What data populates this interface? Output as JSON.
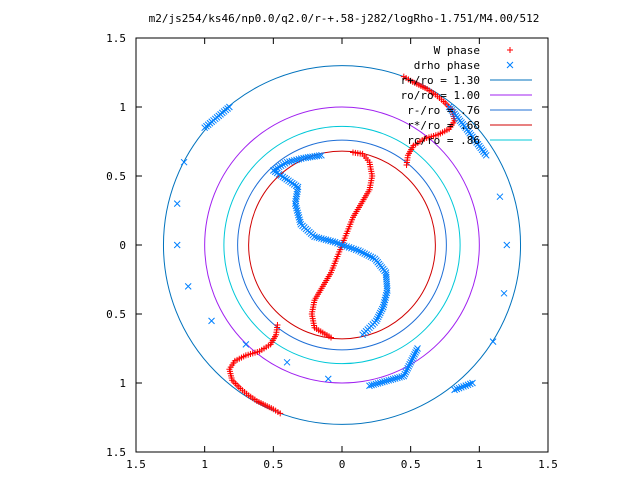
{
  "chart_data": {
    "type": "scatter",
    "title": "m2/js254/ks46/np0.0/q2.0/r-+.58-j282/logRho-1.751/M4.00/512",
    "xlim": [
      -1.5,
      1.5
    ],
    "ylim": [
      -1.5,
      1.5
    ],
    "x_tick_values": [
      -1.5,
      -1,
      -0.5,
      0,
      0.5,
      1,
      1.5
    ],
    "x_tick_labels": [
      "1.5",
      "1",
      "0.5",
      "0",
      "0.5",
      "1",
      "1.5"
    ],
    "y_tick_values": [
      1.5,
      1,
      0.5,
      0,
      -0.5,
      -1,
      -1.5
    ],
    "y_tick_labels": [
      "1.5",
      "1",
      "0.5",
      "0",
      "0.5",
      "1",
      "1.5"
    ],
    "grid": false,
    "legend_position": "top-right",
    "series": [
      {
        "name": "W phase",
        "kind": "points",
        "marker": "plus",
        "color": "#ff0000",
        "points": [
          [
            0.08,
            0.67
          ],
          [
            0.15,
            0.66
          ],
          [
            0.2,
            0.6
          ],
          [
            0.22,
            0.5
          ],
          [
            0.2,
            0.4
          ],
          [
            0.14,
            0.3
          ],
          [
            0.08,
            0.2
          ],
          [
            0.04,
            0.1
          ],
          [
            0.0,
            0.0
          ],
          [
            -0.04,
            -0.1
          ],
          [
            -0.08,
            -0.2
          ],
          [
            -0.14,
            -0.3
          ],
          [
            -0.2,
            -0.4
          ],
          [
            -0.22,
            -0.5
          ],
          [
            -0.2,
            -0.6
          ],
          [
            -0.08,
            -0.67
          ],
          [
            0.47,
            0.58
          ],
          [
            0.48,
            0.65
          ],
          [
            0.52,
            0.72
          ],
          [
            0.6,
            0.77
          ],
          [
            0.7,
            0.8
          ],
          [
            0.78,
            0.84
          ],
          [
            0.82,
            0.9
          ],
          [
            0.8,
            0.98
          ],
          [
            0.74,
            1.04
          ],
          [
            0.68,
            1.09
          ],
          [
            0.62,
            1.13
          ],
          [
            0.56,
            1.16
          ],
          [
            0.5,
            1.19
          ],
          [
            0.45,
            1.22
          ],
          [
            -0.47,
            -0.58
          ],
          [
            -0.48,
            -0.65
          ],
          [
            -0.52,
            -0.72
          ],
          [
            -0.6,
            -0.77
          ],
          [
            -0.7,
            -0.8
          ],
          [
            -0.78,
            -0.84
          ],
          [
            -0.82,
            -0.9
          ],
          [
            -0.8,
            -0.98
          ],
          [
            -0.74,
            -1.04
          ],
          [
            -0.68,
            -1.09
          ],
          [
            -0.62,
            -1.13
          ],
          [
            -0.56,
            -1.16
          ],
          [
            -0.5,
            -1.19
          ],
          [
            -0.45,
            -1.22
          ]
        ]
      },
      {
        "name": "drho phase",
        "kind": "points",
        "marker": "cross",
        "color": "#0080ff",
        "points": [
          [
            -0.15,
            0.65
          ],
          [
            -0.28,
            0.63
          ],
          [
            -0.4,
            0.6
          ],
          [
            -0.5,
            0.54
          ],
          [
            -0.32,
            0.42
          ],
          [
            -0.34,
            0.3
          ],
          [
            -0.3,
            0.15
          ],
          [
            -0.2,
            0.06
          ],
          [
            -0.05,
            0.02
          ],
          [
            0.0,
            0.0
          ],
          [
            0.12,
            -0.04
          ],
          [
            0.24,
            -0.1
          ],
          [
            0.32,
            -0.2
          ],
          [
            0.33,
            -0.33
          ],
          [
            0.3,
            -0.45
          ],
          [
            0.25,
            -0.55
          ],
          [
            0.15,
            -0.65
          ],
          [
            -0.82,
            1.0
          ],
          [
            -1.0,
            0.85
          ],
          [
            -1.15,
            0.6
          ],
          [
            -1.2,
            0.3
          ],
          [
            -1.2,
            0.0
          ],
          [
            -1.12,
            -0.3
          ],
          [
            -0.95,
            -0.55
          ],
          [
            -0.7,
            -0.72
          ],
          [
            -0.4,
            -0.85
          ],
          [
            -0.1,
            -0.97
          ],
          [
            0.2,
            -1.02
          ],
          [
            0.45,
            -0.95
          ],
          [
            0.55,
            -0.75
          ],
          [
            0.78,
            1.0
          ],
          [
            0.9,
            0.85
          ],
          [
            1.05,
            0.65
          ],
          [
            1.15,
            0.35
          ],
          [
            1.2,
            0.0
          ],
          [
            1.18,
            -0.35
          ],
          [
            1.1,
            -0.7
          ],
          [
            0.95,
            -1.0
          ],
          [
            0.82,
            -1.05
          ]
        ]
      },
      {
        "name": "r+/ro = 1.30",
        "kind": "circle",
        "radius": 1.3,
        "color": "#0072bd"
      },
      {
        "name": "ro/ro = 1.00",
        "kind": "circle",
        "radius": 1.0,
        "color": "#a020f0"
      },
      {
        "name": "r-/ro = .76",
        "kind": "circle",
        "radius": 0.76,
        "color": "#1f6fd6"
      },
      {
        "name": "r*/ro = .68",
        "kind": "circle",
        "radius": 0.68,
        "color": "#d00000"
      },
      {
        "name": "rc/ro = .86",
        "kind": "circle",
        "radius": 0.86,
        "color": "#00c8d8"
      }
    ]
  }
}
